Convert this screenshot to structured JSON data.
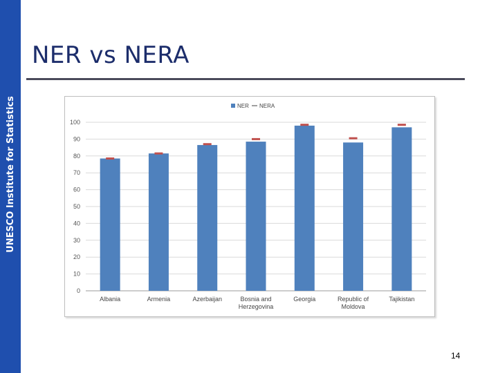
{
  "sidebar": {
    "label": "UNESCO Institute for Statistics",
    "color": "#1f4fae"
  },
  "slide": {
    "title": "NER vs NERA",
    "page_number": "14"
  },
  "chart_data": {
    "type": "bar",
    "title": "",
    "xlabel": "",
    "ylabel": "",
    "categories": [
      "Albania",
      "Armenia",
      "Azerbaijan",
      "Bosnia and Herzegovina",
      "Georgia",
      "Republic of Moldova",
      "Tajikistan"
    ],
    "category_lines": [
      [
        "Albania"
      ],
      [
        "Armenia"
      ],
      [
        "Azerbaijan"
      ],
      [
        "Bosnia and",
        "Herzegovina"
      ],
      [
        "Georgia"
      ],
      [
        "Republic of",
        "Moldova"
      ],
      [
        "Tajikistan"
      ]
    ],
    "series": [
      {
        "name": "NER",
        "kind": "bar",
        "color": "#4f81bd",
        "values": [
          78.5,
          81.5,
          86.5,
          88.5,
          98,
          88,
          97
        ]
      },
      {
        "name": "NERA",
        "kind": "marker",
        "color": "#c0504d",
        "values": [
          78.5,
          81.5,
          87,
          90,
          98.5,
          90.5,
          98.5
        ]
      }
    ],
    "ylim": [
      0,
      100
    ],
    "yticks": [
      0,
      10,
      20,
      30,
      40,
      50,
      60,
      70,
      80,
      90,
      100
    ],
    "grid": true,
    "legend": "top"
  }
}
